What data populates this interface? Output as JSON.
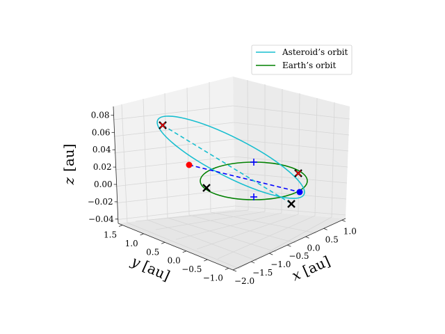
{
  "chart_data": {
    "type": "line3d",
    "title": "",
    "axes": {
      "x": {
        "label": "$x$ [au]",
        "label_parts": [
          "x",
          "[au]"
        ],
        "ticks": [
          -2.0,
          -1.5,
          -1.0,
          -0.5,
          0.0,
          0.5,
          1.0
        ],
        "tick_labels": [
          "−2.0",
          "−1.5",
          "−1.0",
          "−0.5",
          "0.0",
          "0.5",
          "1.0"
        ],
        "lim": [
          -2.0,
          1.1
        ]
      },
      "y": {
        "label": "$y$ [au]",
        "label_parts": [
          "y",
          "[au]"
        ],
        "ticks": [
          -1.0,
          -0.5,
          0.0,
          0.5,
          1.0,
          1.5
        ],
        "tick_labels": [
          "−1.0",
          "−0.5",
          "0.0",
          "0.5",
          "1.0",
          "1.5"
        ],
        "lim": [
          -1.1,
          1.6
        ]
      },
      "z": {
        "label": "$z$ [au]",
        "label_parts": [
          "z",
          "[au]"
        ],
        "ticks": [
          -0.04,
          -0.02,
          0.0,
          0.02,
          0.04,
          0.06,
          0.08
        ],
        "tick_labels": [
          "−0.04",
          "−0.02",
          "0.00",
          "0.02",
          "0.04",
          "0.06",
          "0.08"
        ],
        "lim": [
          -0.045,
          0.09
        ]
      }
    },
    "legend": {
      "placement": "upper right",
      "entries": [
        {
          "label": "Asteroid’s orbit",
          "color": "#17becf"
        },
        {
          "label": "Earth’s orbit",
          "color": "#008000"
        }
      ]
    },
    "series": [
      {
        "name": "Asteroid’s orbit",
        "kind": "ellipse",
        "color": "#17becf",
        "center": [
          -0.85,
          0.2,
          0.026
        ],
        "a": 1.25,
        "b": 0.55,
        "tilt": 0.04
      },
      {
        "name": "Earth’s orbit",
        "kind": "circle",
        "color": "#008000",
        "center": [
          0.0,
          0.0,
          0.0
        ],
        "radius": 1.0
      }
    ],
    "lines": [
      {
        "color": "#0000ff",
        "style": "dashed",
        "from": [
          -0.35,
          1.0,
          0.022
        ],
        "to": [
          0.95,
          -0.25,
          0.0
        ]
      },
      {
        "color": "#17becf",
        "style": "dashed",
        "from": [
          -2.05,
          0.2,
          0.075
        ],
        "to": [
          -0.2,
          -0.85,
          0.0
        ]
      }
    ],
    "points": [
      {
        "color": "#ff0000",
        "marker": "o",
        "xyz": [
          -0.35,
          1.0,
          0.022
        ]
      },
      {
        "color": "#0000ff",
        "marker": "o",
        "xyz": [
          0.95,
          -0.25,
          0.0
        ]
      },
      {
        "color": "#0000ff",
        "marker": "+",
        "xyz": [
          0.1,
          -0.7,
          0.008
        ]
      },
      {
        "color": "#0000ff",
        "marker": "+",
        "xyz": [
          -0.15,
          0.95,
          0.0
        ]
      },
      {
        "color": "#000000",
        "marker": "x",
        "xyz": [
          -0.9,
          1.15,
          0.0
        ]
      },
      {
        "color": "#000000",
        "marker": "x",
        "xyz": [
          0.9,
          -0.6,
          0.0
        ]
      },
      {
        "color": "#000000",
        "marker": "x",
        "xyz": [
          -2.05,
          0.2,
          0.075
        ]
      },
      {
        "color": "#000000",
        "marker": "x",
        "xyz": [
          0.5,
          -0.85,
          0.015
        ]
      },
      {
        "color": "#ff0000",
        "marker": "x",
        "xyz": [
          -2.05,
          0.2,
          0.075
        ]
      },
      {
        "color": "#ff0000",
        "marker": "x",
        "xyz": [
          0.5,
          -0.85,
          0.015
        ]
      }
    ]
  }
}
